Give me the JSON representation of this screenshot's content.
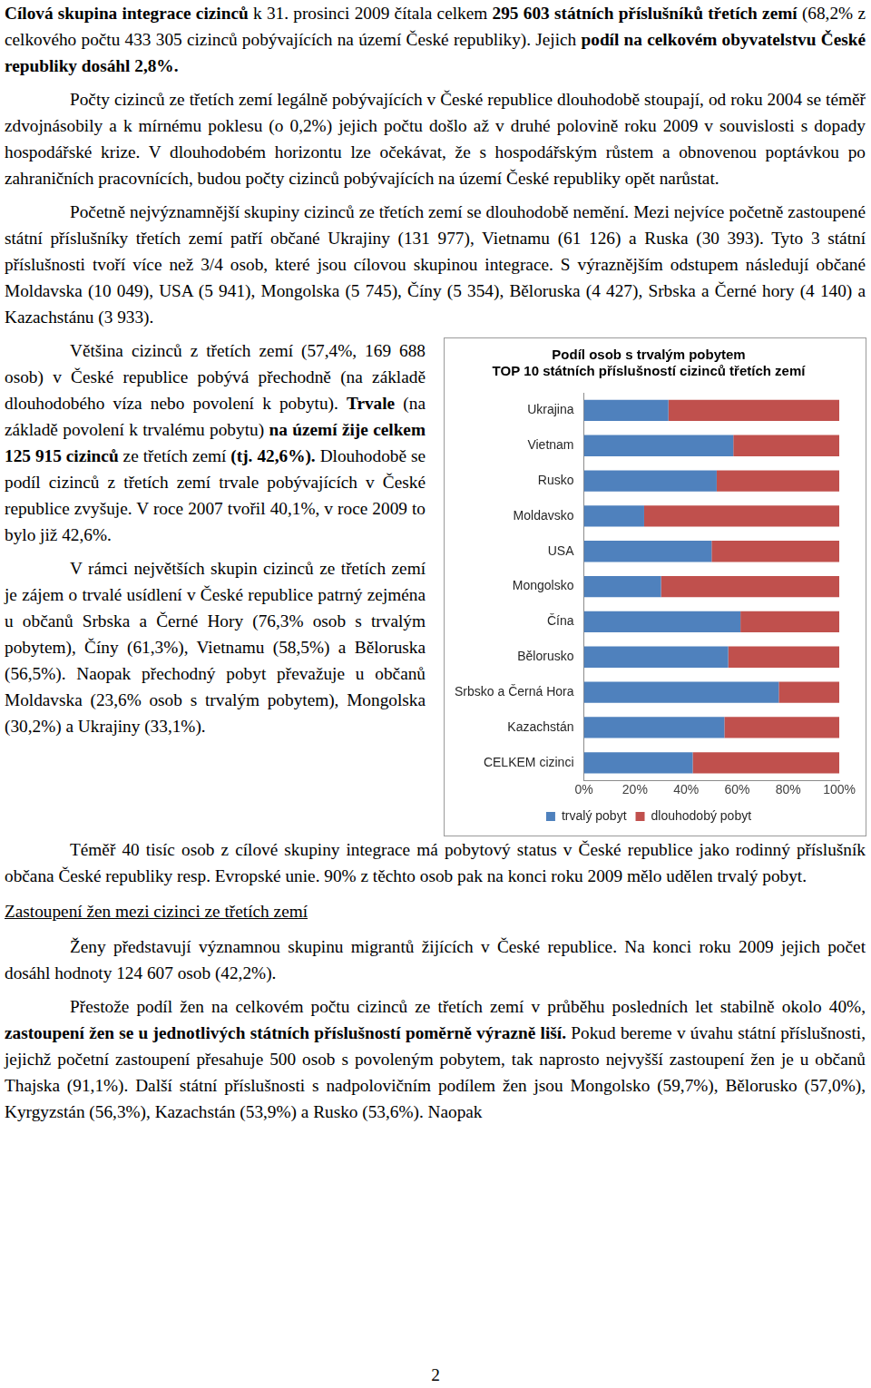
{
  "top": [
    [
      {
        "text": "Cílová skupina integrace cizinců",
        "bold": true
      },
      " k 31. prosinci 2009 čítala celkem ",
      {
        "text": "295 603 státních příslušníků třetích zemí",
        "bold": true
      },
      " (68,2% z celkového počtu 433 305 cizinců pobývajících na území České republiky). Jejich ",
      {
        "text": "podíl na celkovém obyvatelstvu České republiky dosáhl 2,8%.",
        "bold": true
      }
    ],
    [
      "Počty cizinců ze třetích zemí legálně pobývajících v České republice dlouhodobě stoupají, od roku 2004 se téměř zdvojnásobily a k mírnému poklesu (o 0,2%) jejich počtu došlo až v druhé polovině roku 2009 v souvislosti s dopady hospodářské krize. V dlouhodobém horizontu lze očekávat, že s hospodářským růstem a obnovenou poptávkou po zahraničních pracovnících, budou počty cizinců pobývajících na území České republiky opět narůstat."
    ],
    [
      "Početně nejvýznamnější skupiny cizinců ze třetích zemí se dlouhodobě nemění. Mezi nejvíce početně zastoupené státní příslušníky třetích zemí patří občané Ukrajiny (131 977), Vietnamu (61 126) a Ruska (30 393). Tyto 3 státní příslušnosti tvoří více než 3/4 osob, které jsou cílovou skupinou integrace. S výraznějším odstupem následují občané Moldavska (10 049), USA (5 941), Mongolska (5 745), Číny (5 354), Běloruska (4 427), Srbska a Černé hory (4 140) a Kazachstánu (3 933)."
    ]
  ],
  "left_column": [
    [
      "Většina cizinců z třetích zemí (57,4%, 169 688 osob) v České republice pobývá přechodně (na základě dlouhodobého víza nebo povolení k pobytu). ",
      {
        "text": "Trvale",
        "bold": true
      },
      " (na základě povolení k trvalému pobytu) ",
      {
        "text": "na území žije celkem 125 915 cizinců",
        "bold": true
      },
      " ze třetích zemí ",
      {
        "text": "(tj. 42,6%).",
        "bold": true
      },
      " Dlouhodobě se podíl cizinců z třetích zemí trvale pobývajících v České republice zvyšuje. V roce 2007 tvořil 40,1%, v roce 2009 to bylo již 42,6%."
    ],
    [
      "V rámci největších skupin cizinců ze třetích zemí je zájem o trvalé usídlení v České republice patrný zejména u občanů Srbska a Černé Hory (76,3% osob s trvalým pobytem), Číny (61,3%), Vietnamu (58,5%) a Běloruska (56,5%). Naopak přechodný pobyt převažuje u občanů Moldavska (23,6% osob s trvalým pobytem), Mongolska (30,2%) a Ukrajiny (33,1%)."
    ]
  ],
  "bottom": [
    [
      "Téměř 40 tisíc osob z cílové skupiny integrace má pobytový status v České republice jako rodinný příslušník občana České republiky resp. Evropské unie. 90% z těchto osob pak na konci roku 2009 mělo udělen trvalý pobyt."
    ]
  ],
  "heading": "Zastoupení žen mezi cizinci ze třetích zemí",
  "after_heading": [
    [
      "Ženy představují významnou skupinu migrantů žijících v České republice. Na konci roku 2009 jejich počet dosáhl hodnoty 124 607 osob (42,2%)."
    ],
    [
      "Přestože podíl žen na celkovém počtu cizinců ze třetích zemí v průběhu posledních let stabilně okolo 40%, ",
      {
        "text": "zastoupení žen se u jednotlivých státních příslušností poměrně výrazně liší.",
        "bold": true
      },
      " Pokud bereme v úvahu státní příslušnosti, jejichž početní zastoupení přesahuje 500 osob s povoleným pobytem, tak naprosto nejvyšší zastoupení žen je u občanů Thajska (91,1%). Další státní příslušnosti s nadpolovičním podílem žen jsou Mongolsko (59,7%), Bělorusko (57,0%), Kyrgyzstán (56,3%), Kazachstán (53,9%) a Rusko (53,6%). Naopak"
    ]
  ],
  "page_number": "2",
  "chart_data": {
    "type": "bar",
    "orientation": "horizontal",
    "stacked": true,
    "title": [
      "Podíl osob s trvalým pobytem",
      "TOP 10 státních příslušností cizinců třetích zemí"
    ],
    "categories": [
      "Ukrajina",
      "Vietnam",
      "Rusko",
      "Moldavsko",
      "USA",
      "Mongolsko",
      "Čína",
      "Bělorusko",
      "Srbsko a Černá Hora",
      "Kazachstán",
      "CELKEM cizinci"
    ],
    "series": [
      {
        "name": "trvalý pobyt",
        "color": "#4f81bd",
        "values": [
          33.1,
          58.5,
          52,
          23.6,
          50,
          30.2,
          61.3,
          56.5,
          76.3,
          55,
          42.6
        ]
      },
      {
        "name": "dlouhodobý pobyt",
        "color": "#c0504d",
        "values": [
          66.9,
          41.5,
          48,
          76.4,
          50,
          69.8,
          38.7,
          43.5,
          23.7,
          45,
          57.4
        ]
      }
    ],
    "xlim": [
      0,
      100
    ],
    "xticks": [
      {
        "value": 0,
        "label": "0%"
      },
      {
        "value": 20,
        "label": "20%"
      },
      {
        "value": 40,
        "label": "40%"
      },
      {
        "value": 60,
        "label": "60%"
      },
      {
        "value": 80,
        "label": "80%"
      },
      {
        "value": 100,
        "label": "100%"
      }
    ],
    "grid": false,
    "legend": "bottom",
    "data_labels": false
  }
}
